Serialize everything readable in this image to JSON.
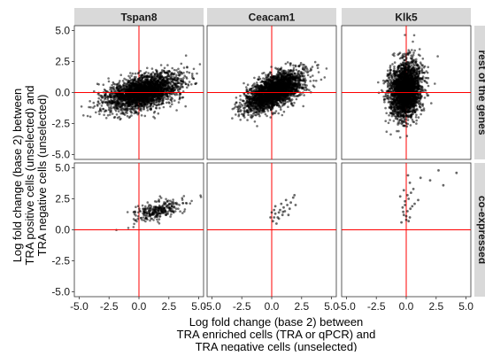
{
  "chart_data": {
    "type": "scatter",
    "xlabel": [
      "Log fold change (base 2) between",
      "TRA enriched cells (TRA or qPCR) and",
      "TRA negative cells (unselected)"
    ],
    "ylabel": [
      "Log fold change (base 2) between",
      "TRA positive cells (unselected) and",
      "TRA negative cells (unselected)"
    ],
    "xlim": [
      -5.4,
      5.4
    ],
    "ylim": [
      -5.4,
      5.4
    ],
    "x_ticks": [
      "-5.0",
      "-2.5",
      "0.0",
      "2.5",
      "5.0"
    ],
    "y_ticks": [
      "-5.0",
      "-2.5",
      "0.0",
      "2.5",
      "5.0"
    ],
    "reference_lines": {
      "x": 0,
      "y": 0,
      "color": "#ff0000"
    },
    "point_color": "#000000",
    "columns": [
      "Tspan8",
      "Ceacam1",
      "Klk5"
    ],
    "rows": [
      "rest of the genes",
      "co-expressed"
    ],
    "panels": [
      {
        "col": "Tspan8",
        "row": "rest of the genes",
        "cloud": {
          "n": 2600,
          "cx": 0.4,
          "cy": 0.05,
          "sx": 1.5,
          "sy": 0.72,
          "rho": 0.45
        }
      },
      {
        "col": "Ceacam1",
        "row": "rest of the genes",
        "cloud": {
          "n": 2600,
          "cx": 0.2,
          "cy": 0.1,
          "sx": 1.2,
          "sy": 0.8,
          "rho": 0.62
        }
      },
      {
        "col": "Klk5",
        "row": "rest of the genes",
        "cloud": {
          "n": 2600,
          "cx": -0.05,
          "cy": 0.2,
          "sx": 0.65,
          "sy": 1.1,
          "rho": 0.1
        }
      },
      {
        "col": "Tspan8",
        "row": "co-expressed",
        "cloud": {
          "n": 280,
          "cx": 1.4,
          "cy": 1.5,
          "sx": 1.1,
          "sy": 0.45,
          "rho": 0.55
        }
      },
      {
        "col": "Ceacam1",
        "row": "co-expressed",
        "points": [
          [
            0.1,
            0.7
          ],
          [
            0.2,
            1.0
          ],
          [
            0.3,
            1.3
          ],
          [
            0.5,
            1.0
          ],
          [
            0.6,
            1.4
          ],
          [
            0.7,
            1.6
          ],
          [
            0.9,
            1.2
          ],
          [
            1.0,
            1.8
          ],
          [
            1.1,
            1.5
          ],
          [
            1.3,
            2.0
          ],
          [
            1.5,
            1.7
          ],
          [
            1.6,
            2.2
          ],
          [
            1.8,
            2.6
          ],
          [
            2.0,
            2.0
          ],
          [
            -0.1,
            1.0
          ],
          [
            0.4,
            0.5
          ],
          [
            0.8,
            2.1
          ],
          [
            1.2,
            2.4
          ],
          [
            0.0,
            1.4
          ],
          [
            0.3,
            1.9
          ],
          [
            1.4,
            1.2
          ],
          [
            0.6,
            0.9
          ],
          [
            1.9,
            2.8
          ],
          [
            0.2,
            1.6
          ],
          [
            0.95,
            1.45
          ]
        ]
      },
      {
        "col": "Klk5",
        "row": "co-expressed",
        "points": [
          [
            -0.2,
            1.2
          ],
          [
            -0.1,
            2.0
          ],
          [
            0.0,
            0.8
          ],
          [
            0.1,
            1.5
          ],
          [
            0.2,
            2.5
          ],
          [
            -0.3,
            1.8
          ],
          [
            0.3,
            1.0
          ],
          [
            0.4,
            3.0
          ],
          [
            -0.2,
            3.2
          ],
          [
            0.1,
            2.8
          ],
          [
            1.2,
            4.2
          ],
          [
            2.0,
            4.0
          ],
          [
            2.7,
            4.8
          ],
          [
            4.2,
            4.6
          ],
          [
            0.5,
            1.9
          ],
          [
            -0.4,
            0.6
          ],
          [
            0.3,
            3.8
          ],
          [
            0.6,
            3.3
          ],
          [
            1.0,
            2.4
          ],
          [
            -0.1,
            2.3
          ],
          [
            0.0,
            1.1
          ],
          [
            0.2,
            0.7
          ],
          [
            -0.5,
            2.7
          ],
          [
            3.1,
            3.6
          ],
          [
            0.15,
            4.4
          ],
          [
            -0.25,
            1.45
          ],
          [
            0.35,
            1.7
          ],
          [
            0.7,
            2.1
          ]
        ]
      }
    ]
  }
}
